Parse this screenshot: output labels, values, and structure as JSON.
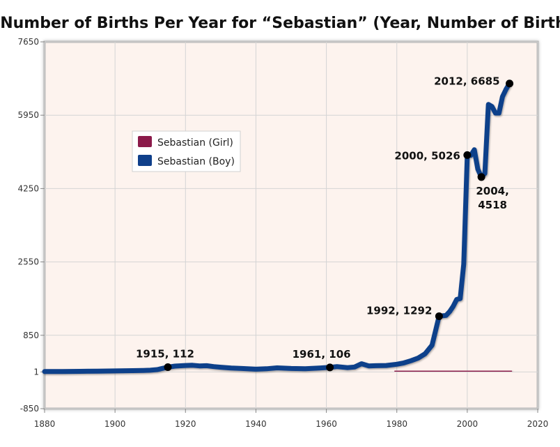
{
  "chart_data": {
    "type": "line",
    "title": "Number of Births Per Year for “Sebastian”  (Year, Number of Births)",
    "xlabel": "",
    "ylabel": "",
    "xlim": [
      1880,
      2020
    ],
    "ylim": [
      -850,
      7650
    ],
    "x_ticks": [
      1880,
      1900,
      1920,
      1940,
      1960,
      1980,
      2000,
      2020
    ],
    "y_ticks": [
      -850,
      1,
      850,
      2550,
      4250,
      5950,
      7650
    ],
    "legend_position": "upper-left",
    "colors": {
      "girl": "#8b1a4a",
      "boy": "#0f3f8a",
      "plot_background": "#fdf3ee",
      "grid": "#d4d4d4",
      "frame": "#b5b5b5"
    },
    "series": [
      {
        "name": "Sebastian (Girl)",
        "color": "#8b1a4a",
        "x": [
          1980,
          1985,
          1990,
          1995,
          2000,
          2005,
          2008,
          2012
        ],
        "values": [
          12,
          12,
          14,
          15,
          16,
          20,
          22,
          18
        ]
      },
      {
        "name": "Sebastian (Boy)",
        "color": "#0f3f8a",
        "x": [
          1880,
          1885,
          1890,
          1895,
          1900,
          1905,
          1908,
          1910,
          1912,
          1913,
          1915,
          1917,
          1920,
          1922,
          1924,
          1926,
          1928,
          1930,
          1933,
          1936,
          1940,
          1943,
          1946,
          1950,
          1954,
          1958,
          1961,
          1963,
          1966,
          1968,
          1970,
          1972,
          1974,
          1977,
          1980,
          1982,
          1984,
          1986,
          1988,
          1990,
          1992,
          1994,
          1995,
          1996,
          1997,
          1998,
          1999,
          2000,
          2001,
          2002,
          2003,
          2004,
          2005,
          2006,
          2007,
          2008,
          2009,
          2010,
          2011,
          2012
        ],
        "values": [
          10,
          10,
          15,
          20,
          25,
          30,
          35,
          40,
          55,
          75,
          112,
          135,
          150,
          155,
          140,
          145,
          125,
          110,
          90,
          80,
          65,
          75,
          95,
          80,
          75,
          90,
          106,
          125,
          100,
          115,
          190,
          140,
          145,
          150,
          180,
          210,
          260,
          320,
          420,
          620,
          1292,
          1310,
          1400,
          1520,
          1680,
          1700,
          2500,
          5026,
          5020,
          5150,
          4700,
          4518,
          4600,
          6200,
          6150,
          6000,
          6000,
          6380,
          6550,
          6685
        ]
      }
    ],
    "annotations": [
      {
        "label": "1915, 112",
        "x": 1915,
        "y": 112
      },
      {
        "label": "1961, 106",
        "x": 1961,
        "y": 106
      },
      {
        "label": "1992, 1292",
        "x": 1992,
        "y": 1292
      },
      {
        "label": "2000, 5026",
        "x": 2000,
        "y": 5026
      },
      {
        "label": "2004,",
        "label2": "4518",
        "x": 2004,
        "y": 4518
      },
      {
        "label": "2012, 6685",
        "x": 2012,
        "y": 6685
      }
    ]
  }
}
